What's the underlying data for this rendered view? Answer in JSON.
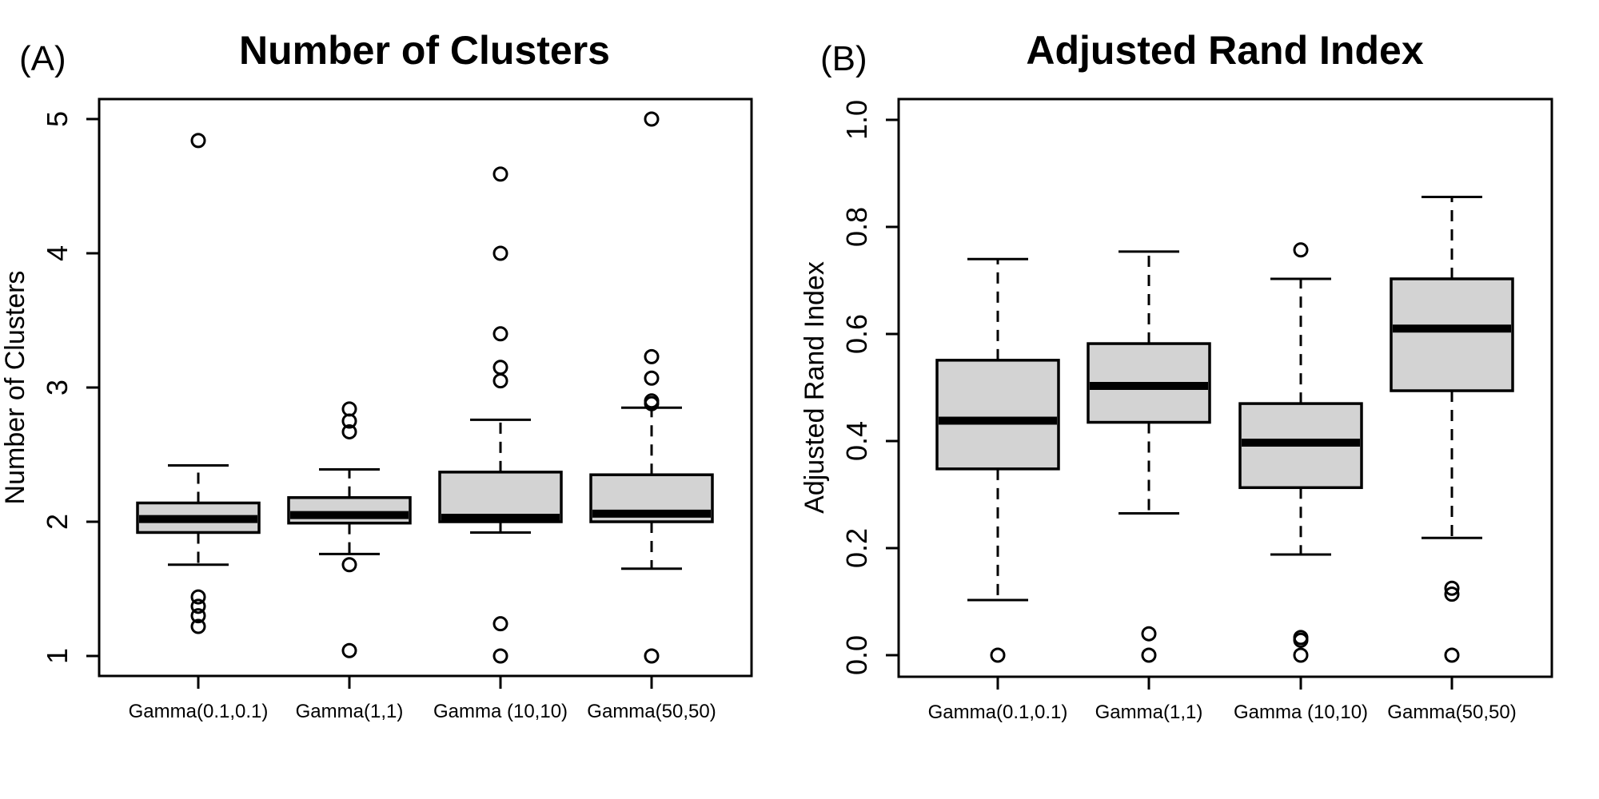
{
  "chart_data": [
    {
      "type": "box",
      "panel_label": "(A)",
      "title": "Number of Clusters",
      "xlabel": "",
      "ylabel": "Number of Clusters",
      "ylim": [
        0.83,
        5.14
      ],
      "yticks": [
        1,
        2,
        3,
        4,
        5
      ],
      "ytick_labels": [
        "1",
        "2",
        "3",
        "4",
        "5"
      ],
      "categories": [
        "Gamma(0.1,0.1)",
        "Gamma(1,1)",
        "Gamma (10,10)",
        "Gamma(50,50)"
      ],
      "boxes": [
        {
          "lower_whisker": 1.68,
          "q1": 1.92,
          "median": 2.02,
          "q3": 2.14,
          "upper_whisker": 2.42,
          "outliers": [
            4.84,
            1.44,
            1.37,
            1.3,
            1.22
          ]
        },
        {
          "lower_whisker": 1.76,
          "q1": 1.99,
          "median": 2.05,
          "q3": 2.18,
          "upper_whisker": 2.39,
          "outliers": [
            2.84,
            2.75,
            2.67,
            1.68,
            1.04
          ]
        },
        {
          "lower_whisker": 1.92,
          "q1": 2.0,
          "median": 2.03,
          "q3": 2.37,
          "upper_whisker": 2.76,
          "outliers": [
            4.59,
            4.0,
            3.4,
            3.15,
            3.05,
            1.24,
            1.0
          ]
        },
        {
          "lower_whisker": 1.65,
          "q1": 2.0,
          "median": 2.06,
          "q3": 2.35,
          "upper_whisker": 2.85,
          "outliers": [
            5.0,
            3.23,
            3.07,
            2.9,
            2.88,
            1.0
          ]
        }
      ],
      "grid": false,
      "box_fill": "#d3d3d3"
    },
    {
      "type": "box",
      "panel_label": "(B)",
      "title": "Adjusted Rand Index",
      "xlabel": "",
      "ylabel": "Adjusted Rand Index",
      "ylim": [
        -0.04,
        1.04
      ],
      "yticks": [
        0.0,
        0.2,
        0.4,
        0.6,
        0.8,
        1.0
      ],
      "ytick_labels": [
        "0.0",
        "0.2",
        "0.4",
        "0.6",
        "0.8",
        "1.0"
      ],
      "categories": [
        "Gamma(0.1,0.1)",
        "Gamma(1,1)",
        "Gamma (10,10)",
        "Gamma(50,50)"
      ],
      "boxes": [
        {
          "lower_whisker": 0.103,
          "q1": 0.348,
          "median": 0.438,
          "q3": 0.551,
          "upper_whisker": 0.74,
          "outliers": [
            0.0
          ]
        },
        {
          "lower_whisker": 0.265,
          "q1": 0.435,
          "median": 0.503,
          "q3": 0.582,
          "upper_whisker": 0.754,
          "outliers": [
            0.04,
            0.0
          ]
        },
        {
          "lower_whisker": 0.188,
          "q1": 0.313,
          "median": 0.397,
          "q3": 0.47,
          "upper_whisker": 0.703,
          "outliers": [
            0.757,
            0.033,
            0.028,
            0.0
          ]
        },
        {
          "lower_whisker": 0.219,
          "q1": 0.494,
          "median": 0.61,
          "q3": 0.703,
          "upper_whisker": 0.856,
          "outliers": [
            0.125,
            0.114,
            0.0
          ]
        }
      ],
      "grid": false,
      "box_fill": "#d3d3d3"
    }
  ]
}
